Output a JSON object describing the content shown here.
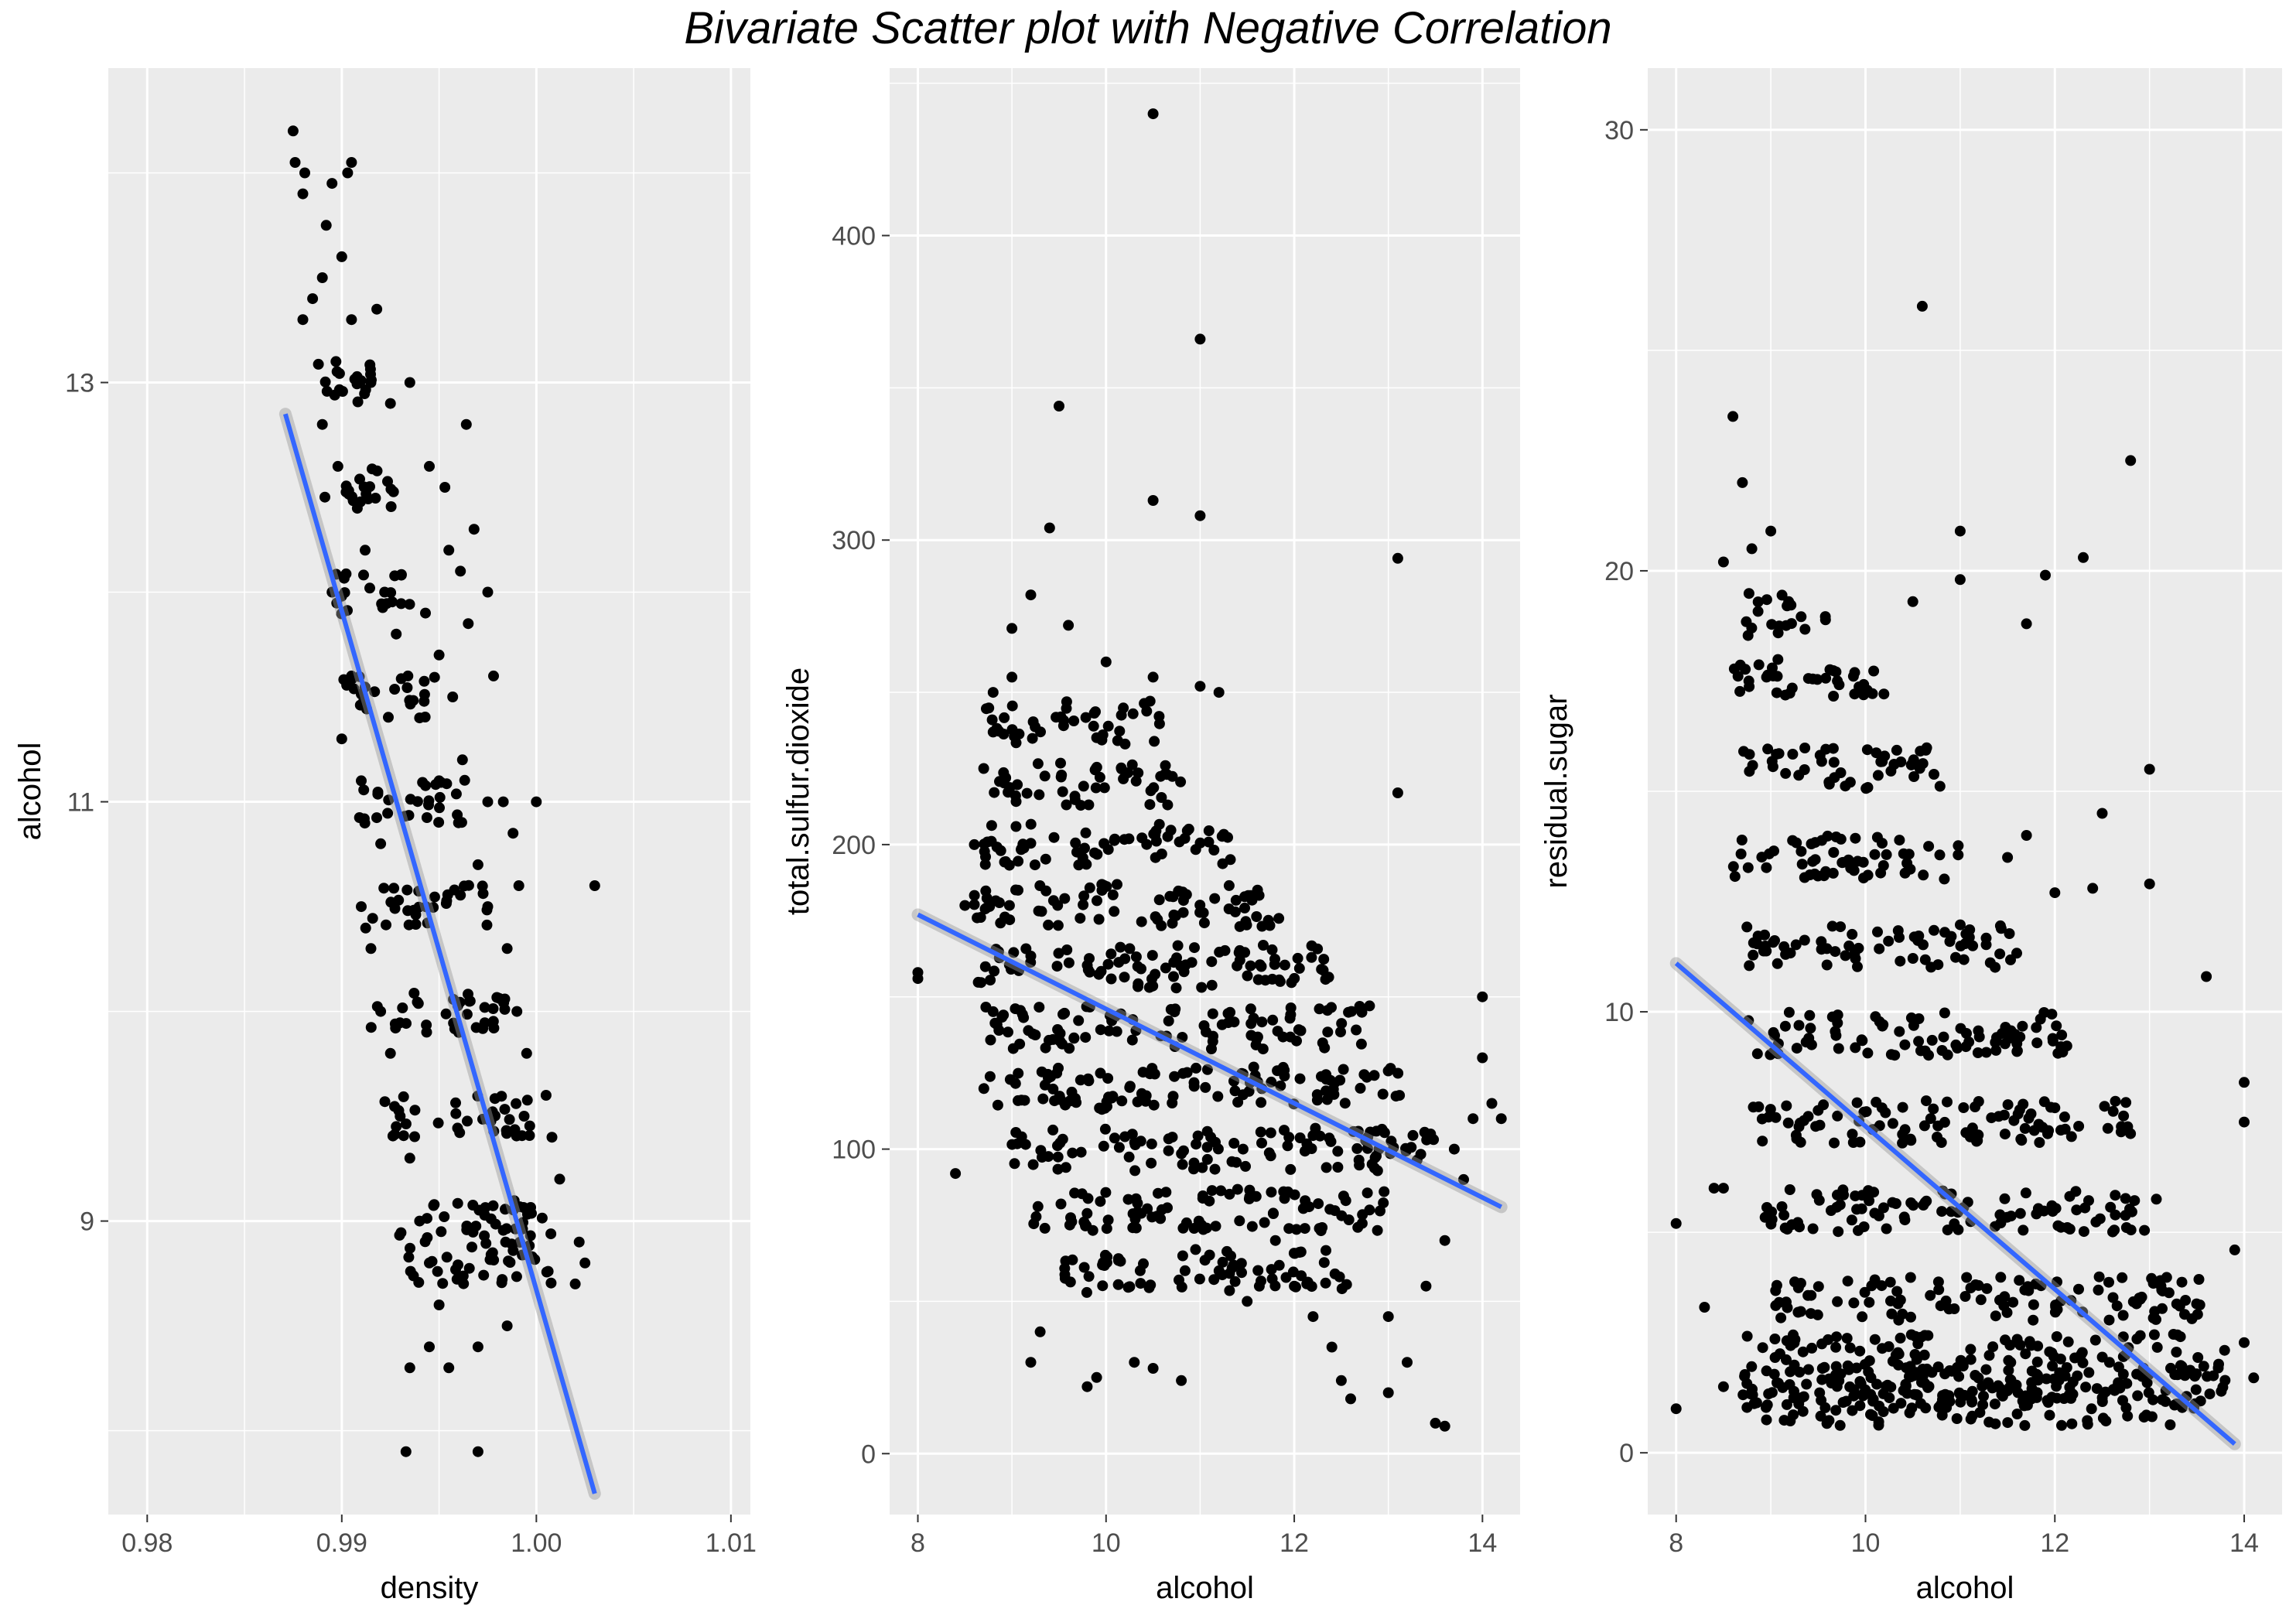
{
  "title": "Bivariate Scatter plot with Negative Correlation",
  "colors": {
    "panel_bg": "#ebebeb",
    "grid_major": "#ffffff",
    "points": "#000000",
    "trend_line": "#3366ff",
    "confidence_band": "#999999",
    "tick_label": "#4d4d4d"
  },
  "chart_data": [
    {
      "type": "scatter",
      "xlabel": "density",
      "ylabel": "alcohol",
      "xlim": [
        0.978,
        1.011
      ],
      "ylim": [
        7.6,
        14.5
      ],
      "x_ticks": [
        0.98,
        0.99,
        1.0,
        1.01
      ],
      "x_tick_labels": [
        "0.98",
        "0.99",
        "1.00",
        "1.01"
      ],
      "y_ticks": [
        9,
        11,
        13
      ],
      "y_tick_labels": [
        "9",
        "11",
        "13"
      ],
      "grid": true,
      "trend_line": {
        "x": [
          0.9871,
          1.003
        ],
        "y": [
          12.85,
          7.7
        ]
      },
      "points": [
        [
          0.9875,
          14.2
        ],
        [
          0.9876,
          14.05
        ],
        [
          0.9881,
          14.0
        ],
        [
          0.988,
          13.9
        ],
        [
          0.9895,
          13.95
        ],
        [
          0.9903,
          14.0
        ],
        [
          0.9905,
          14.05
        ],
        [
          0.9892,
          13.75
        ],
        [
          0.99,
          13.6
        ],
        [
          0.989,
          13.5
        ],
        [
          0.9885,
          13.4
        ],
        [
          0.988,
          13.3
        ],
        [
          0.9905,
          13.3
        ],
        [
          0.9918,
          13.35
        ],
        [
          0.9897,
          13.1
        ],
        [
          0.9915,
          13.0
        ],
        [
          0.9925,
          12.9
        ],
        [
          0.9935,
          13.0
        ],
        [
          0.9964,
          12.8
        ],
        [
          0.9945,
          12.6
        ],
        [
          0.9953,
          12.5
        ],
        [
          0.9968,
          12.3
        ],
        [
          0.9961,
          12.1
        ],
        [
          0.9975,
          12.0
        ],
        [
          0.9955,
          12.2
        ],
        [
          0.9943,
          11.9
        ],
        [
          0.995,
          11.7
        ],
        [
          0.9965,
          11.85
        ],
        [
          0.9978,
          11.6
        ],
        [
          0.9957,
          11.5
        ],
        [
          0.9962,
          11.2
        ],
        [
          0.9983,
          11.0
        ],
        [
          0.9975,
          11.0
        ],
        [
          0.9988,
          10.85
        ],
        [
          0.9991,
          10.6
        ],
        [
          1.003,
          10.6
        ],
        [
          1.0,
          11.0
        ],
        [
          0.989,
          12.8
        ],
        [
          0.9898,
          12.6
        ],
        [
          0.9908,
          12.4
        ],
        [
          0.9912,
          12.2
        ],
        [
          0.9922,
          12.0
        ],
        [
          0.9928,
          11.8
        ],
        [
          0.9934,
          11.6
        ],
        [
          0.994,
          11.4
        ],
        [
          0.995,
          11.1
        ],
        [
          0.996,
          10.9
        ],
        [
          0.997,
          10.7
        ],
        [
          0.9975,
          10.5
        ],
        [
          0.9985,
          10.3
        ],
        [
          0.999,
          10.0
        ],
        [
          0.9995,
          9.8
        ],
        [
          1.0005,
          9.6
        ],
        [
          1.0008,
          9.4
        ],
        [
          1.0012,
          9.2
        ],
        [
          1.0022,
          8.9
        ],
        [
          1.0025,
          8.8
        ],
        [
          1.002,
          8.7
        ],
        [
          0.9985,
          8.5
        ],
        [
          0.997,
          8.4
        ],
        [
          0.9955,
          8.3
        ],
        [
          0.9945,
          8.4
        ],
        [
          0.9935,
          8.3
        ],
        [
          0.9933,
          7.9
        ],
        [
          0.997,
          7.9
        ],
        [
          0.991,
          10.5
        ],
        [
          0.9915,
          10.3
        ],
        [
          0.992,
          10.0
        ],
        [
          0.9925,
          9.8
        ],
        [
          0.993,
          9.5
        ],
        [
          0.9935,
          9.3
        ],
        [
          0.994,
          9.0
        ],
        [
          0.9945,
          8.8
        ],
        [
          0.995,
          8.6
        ],
        [
          0.9905,
          11.6
        ],
        [
          0.99,
          11.3
        ],
        [
          0.991,
          11.1
        ],
        [
          0.992,
          10.8
        ],
        [
          0.9895,
          12.0
        ]
      ],
      "cluster_points": [
        {
          "y": 13.0,
          "x0": 0.9888,
          "x1": 0.9917
        },
        {
          "y": 12.5,
          "x0": 0.9889,
          "x1": 0.9929
        },
        {
          "y": 12.0,
          "x0": 0.9897,
          "x1": 0.9935
        },
        {
          "y": 11.5,
          "x0": 0.99,
          "x1": 0.9948
        },
        {
          "y": 11.0,
          "x0": 0.9907,
          "x1": 0.9964
        },
        {
          "y": 10.5,
          "x0": 0.9912,
          "x1": 0.9975
        },
        {
          "y": 10.0,
          "x0": 0.9915,
          "x1": 0.9987
        },
        {
          "y": 9.5,
          "x0": 0.9922,
          "x1": 1.0
        },
        {
          "y": 9.0,
          "x0": 0.9927,
          "x1": 1.0008
        },
        {
          "y": 8.8,
          "x0": 0.9927,
          "x1": 1.0008
        }
      ]
    },
    {
      "type": "scatter",
      "xlabel": "alcohol",
      "ylabel": "total.sulfur.dioxide",
      "xlim": [
        7.7,
        14.4
      ],
      "ylim": [
        -20,
        455
      ],
      "x_ticks": [
        8,
        10,
        12,
        14
      ],
      "x_tick_labels": [
        "8",
        "10",
        "12",
        "14"
      ],
      "y_ticks": [
        0,
        100,
        200,
        300,
        400
      ],
      "y_tick_labels": [
        "0",
        "100",
        "200",
        "300",
        "400"
      ],
      "grid": true,
      "trend_line": {
        "x": [
          8.0,
          14.2
        ],
        "y": [
          177,
          81
        ]
      },
      "points": [
        [
          10.5,
          440
        ],
        [
          11.0,
          366
        ],
        [
          9.5,
          344
        ],
        [
          10.5,
          313
        ],
        [
          11.0,
          308
        ],
        [
          9.4,
          304
        ],
        [
          13.1,
          294
        ],
        [
          9.2,
          282
        ],
        [
          9.6,
          272
        ],
        [
          9.0,
          271
        ],
        [
          8.0,
          158
        ],
        [
          8.0,
          156
        ],
        [
          8.5,
          180
        ],
        [
          8.6,
          200
        ],
        [
          8.7,
          225
        ],
        [
          8.8,
          250
        ],
        [
          9.0,
          255
        ],
        [
          10.0,
          260
        ],
        [
          10.5,
          255
        ],
        [
          11.0,
          252
        ],
        [
          11.2,
          250
        ],
        [
          13.1,
          217
        ],
        [
          8.4,
          92
        ],
        [
          9.2,
          30
        ],
        [
          9.3,
          40
        ],
        [
          9.8,
          22
        ],
        [
          9.9,
          25
        ],
        [
          10.3,
          30
        ],
        [
          10.8,
          24
        ],
        [
          10.5,
          28
        ],
        [
          12.5,
          24
        ],
        [
          12.6,
          18
        ],
        [
          13.0,
          20
        ],
        [
          13.5,
          10
        ],
        [
          13.6,
          9
        ],
        [
          11.8,
          70
        ],
        [
          12.0,
          55
        ],
        [
          12.2,
          45
        ],
        [
          12.4,
          35
        ],
        [
          11.5,
          50
        ],
        [
          13.2,
          30
        ],
        [
          13.0,
          45
        ],
        [
          13.4,
          55
        ],
        [
          13.6,
          70
        ],
        [
          13.8,
          90
        ],
        [
          13.9,
          110
        ],
        [
          14.0,
          150
        ],
        [
          14.0,
          130
        ],
        [
          14.1,
          115
        ],
        [
          13.7,
          100
        ],
        [
          14.2,
          110
        ],
        [
          12.8,
          80
        ],
        [
          12.9,
          100
        ]
      ],
      "cluster_points": [
        {
          "y": 240,
          "x0": 8.7,
          "x1": 10.6
        },
        {
          "y": 220,
          "x0": 8.8,
          "x1": 10.8
        },
        {
          "y": 200,
          "x0": 8.7,
          "x1": 11.4
        },
        {
          "y": 180,
          "x0": 8.6,
          "x1": 11.9
        },
        {
          "y": 160,
          "x0": 8.6,
          "x1": 12.4
        },
        {
          "y": 140,
          "x0": 8.7,
          "x1": 12.8
        },
        {
          "y": 120,
          "x0": 8.7,
          "x1": 13.2
        },
        {
          "y": 100,
          "x0": 9.0,
          "x1": 13.5
        },
        {
          "y": 80,
          "x0": 9.2,
          "x1": 13.0
        },
        {
          "y": 60,
          "x0": 9.5,
          "x1": 12.6
        }
      ]
    },
    {
      "type": "scatter",
      "xlabel": "alcohol",
      "ylabel": "residual.sugar",
      "xlim": [
        7.7,
        14.4
      ],
      "ylim": [
        -1.4,
        31.4
      ],
      "x_ticks": [
        8,
        10,
        12,
        14
      ],
      "x_tick_labels": [
        "8",
        "10",
        "12",
        "14"
      ],
      "y_ticks": [
        0,
        10,
        20,
        30
      ],
      "y_tick_labels": [
        "0",
        "10",
        "20",
        "30"
      ],
      "grid": true,
      "trend_line": {
        "x": [
          8.0,
          13.9
        ],
        "y": [
          11.1,
          0.2
        ]
      },
      "points": [
        [
          10.6,
          26.0
        ],
        [
          8.6,
          23.5
        ],
        [
          8.7,
          22.0
        ],
        [
          12.8,
          22.5
        ],
        [
          8.5,
          20.2
        ],
        [
          8.8,
          20.5
        ],
        [
          9.0,
          20.9
        ],
        [
          11.0,
          20.9
        ],
        [
          11.9,
          19.9
        ],
        [
          12.3,
          20.3
        ],
        [
          11.0,
          19.8
        ],
        [
          11.7,
          18.8
        ],
        [
          10.5,
          19.3
        ],
        [
          8.0,
          5.2
        ],
        [
          8.0,
          1.0
        ],
        [
          8.3,
          3.3
        ],
        [
          8.5,
          6.0
        ],
        [
          8.4,
          6.0
        ],
        [
          8.5,
          1.5
        ],
        [
          13.6,
          10.8
        ],
        [
          14.0,
          8.4
        ],
        [
          14.0,
          7.5
        ],
        [
          13.9,
          4.6
        ],
        [
          14.1,
          1.7
        ],
        [
          14.0,
          2.5
        ],
        [
          13.0,
          15.5
        ],
        [
          13.0,
          12.9
        ],
        [
          12.5,
          14.5
        ],
        [
          12.4,
          12.8
        ],
        [
          12.0,
          12.7
        ],
        [
          11.7,
          14.0
        ],
        [
          11.5,
          13.5
        ]
      ],
      "cluster_points": [
        {
          "y": 19.0,
          "x0": 8.7,
          "x1": 9.6
        },
        {
          "y": 17.5,
          "x0": 8.6,
          "x1": 10.2
        },
        {
          "y": 15.5,
          "x0": 8.7,
          "x1": 10.8
        },
        {
          "y": 13.5,
          "x0": 8.6,
          "x1": 11.0
        },
        {
          "y": 11.5,
          "x0": 8.7,
          "x1": 11.6
        },
        {
          "y": 9.5,
          "x0": 8.7,
          "x1": 12.2
        },
        {
          "y": 7.5,
          "x0": 8.8,
          "x1": 12.9
        },
        {
          "y": 5.5,
          "x0": 8.9,
          "x1": 13.1
        },
        {
          "y": 3.5,
          "x0": 9.0,
          "x1": 13.6
        },
        {
          "y": 2.2,
          "x0": 8.7,
          "x1": 13.8
        },
        {
          "y": 1.5,
          "x0": 8.7,
          "x1": 13.8
        },
        {
          "y": 1.1,
          "x0": 8.8,
          "x1": 13.4
        }
      ]
    }
  ]
}
